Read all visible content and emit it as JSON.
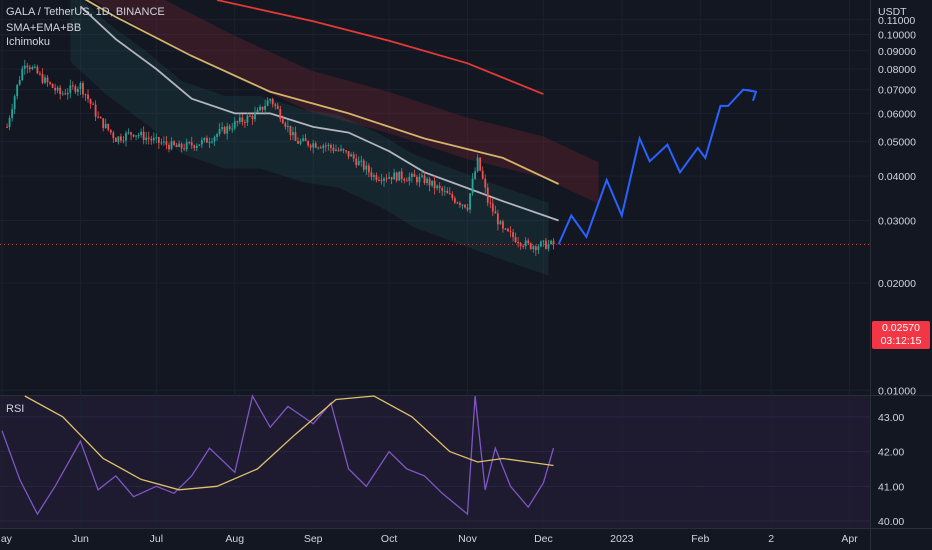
{
  "header": {
    "symbol": "GALA / TetherUS, 1D, BINANCE",
    "indicator1": "SMA+EMA+BB",
    "indicator2": "Ichimoku"
  },
  "price_panel": {
    "currency": "USDT",
    "current_price": "0.02570",
    "countdown": "03:12:15",
    "price_color": "#f23645",
    "projection_color": "#2962ff"
  },
  "rsi_panel": {
    "label": "RSI"
  },
  "chart_data": [
    {
      "type": "line",
      "title": "GALA / TetherUS, 1D, BINANCE",
      "xlabel": "",
      "ylabel": "",
      "y_axis_label": "USDT",
      "y_scale": "log",
      "ylim": [
        0.0097,
        0.125
      ],
      "x_ticks": [
        "May",
        "Jun",
        "Jul",
        "Aug",
        "Sep",
        "Oct",
        "Nov",
        "Dec",
        "2023",
        "Feb",
        "2",
        "Apr"
      ],
      "x_tick_dates": [
        "2022-05-01",
        "2022-06-01",
        "2022-07-01",
        "2022-08-01",
        "2022-09-01",
        "2022-10-01",
        "2022-11-01",
        "2022-12-01",
        "2023-01-01",
        "2023-02-01",
        "2023-03-01",
        "2023-04-01"
      ],
      "y_ticks": [
        "0.11000",
        "0.10000",
        "0.09000",
        "0.08000",
        "0.07000",
        "0.06000",
        "0.05000",
        "0.04000",
        "0.03000",
        "0.02000",
        "0.01000"
      ],
      "y_tick_values": [
        0.11,
        0.1,
        0.09,
        0.08,
        0.07,
        0.06,
        0.05,
        0.04,
        0.03,
        0.02,
        0.01
      ],
      "grid": true,
      "series": [
        {
          "role": "price",
          "color": "#d1d4dc",
          "x": [
            "2022-05-03",
            "2022-05-10",
            "2022-05-17",
            "2022-05-24",
            "2022-06-01",
            "2022-06-08",
            "2022-06-15",
            "2022-06-22",
            "2022-07-01",
            "2022-07-10",
            "2022-07-20",
            "2022-08-01",
            "2022-08-10",
            "2022-08-15",
            "2022-08-25",
            "2022-09-05",
            "2022-09-15",
            "2022-09-25",
            "2022-10-05",
            "2022-10-15",
            "2022-10-25",
            "2022-11-01",
            "2022-11-05",
            "2022-11-09",
            "2022-11-15",
            "2022-11-25",
            "2022-12-05"
          ],
          "y": [
            0.055,
            0.084,
            0.075,
            0.068,
            0.072,
            0.058,
            0.051,
            0.053,
            0.05,
            0.048,
            0.05,
            0.056,
            0.06,
            0.066,
            0.05,
            0.049,
            0.046,
            0.04,
            0.04,
            0.039,
            0.035,
            0.033,
            0.044,
            0.034,
            0.028,
            0.0255,
            0.0257
          ]
        },
        {
          "role": "moving-average-long",
          "color": "#e53935",
          "x": [
            "2022-07-25",
            "2022-09-01",
            "2022-10-01",
            "2022-11-01",
            "2022-12-01"
          ],
          "y": [
            0.125,
            0.109,
            0.096,
            0.083,
            0.068
          ]
        },
        {
          "role": "moving-average-mid",
          "color": "#d4b36a",
          "x": [
            "2022-05-15",
            "2022-06-15",
            "2022-07-15",
            "2022-08-15",
            "2022-09-15",
            "2022-10-15",
            "2022-11-15",
            "2022-12-07"
          ],
          "y": [
            0.15,
            0.112,
            0.087,
            0.069,
            0.06,
            0.051,
            0.045,
            0.038
          ]
        },
        {
          "role": "moving-average-short",
          "color": "#b2b5be",
          "x": [
            "2022-06-01",
            "2022-06-15",
            "2022-07-01",
            "2022-07-15",
            "2022-08-01",
            "2022-08-15",
            "2022-09-01",
            "2022-09-15",
            "2022-10-01",
            "2022-10-15",
            "2022-11-01",
            "2022-11-15",
            "2022-12-07"
          ],
          "y": [
            0.12,
            0.097,
            0.08,
            0.066,
            0.06,
            0.06,
            0.055,
            0.053,
            0.047,
            0.041,
            0.037,
            0.034,
            0.03
          ]
        },
        {
          "role": "projection",
          "color": "#2962ff",
          "x": [
            "2022-12-07",
            "2022-12-12",
            "2022-12-18",
            "2022-12-26",
            "2023-01-01",
            "2023-01-08",
            "2023-01-12",
            "2023-01-19",
            "2023-01-24",
            "2023-01-31",
            "2023-02-03",
            "2023-02-09",
            "2023-02-12",
            "2023-02-18",
            "2023-02-23"
          ],
          "y": [
            0.0257,
            0.031,
            0.027,
            0.039,
            0.031,
            0.051,
            0.044,
            0.049,
            0.041,
            0.048,
            0.045,
            0.063,
            0.063,
            0.07,
            0.069
          ]
        }
      ]
    },
    {
      "type": "line",
      "title": "RSI",
      "xlabel": "",
      "ylabel": "",
      "ylim": [
        39.8,
        43.6
      ],
      "y_ticks": [
        "43.00",
        "42.00",
        "41.00",
        "40.00"
      ],
      "y_tick_values": [
        43.0,
        42.0,
        41.0,
        40.0
      ],
      "grid": true,
      "series": [
        {
          "role": "rsi",
          "color": "#7e57c2",
          "x": [
            "2022-05-01",
            "2022-05-08",
            "2022-05-15",
            "2022-05-22",
            "2022-06-01",
            "2022-06-08",
            "2022-06-15",
            "2022-06-22",
            "2022-07-01",
            "2022-07-08",
            "2022-07-15",
            "2022-07-22",
            "2022-08-01",
            "2022-08-08",
            "2022-08-15",
            "2022-08-22",
            "2022-09-01",
            "2022-09-08",
            "2022-09-15",
            "2022-09-22",
            "2022-10-01",
            "2022-10-08",
            "2022-10-15",
            "2022-10-22",
            "2022-11-01",
            "2022-11-04",
            "2022-11-08",
            "2022-11-12",
            "2022-11-18",
            "2022-11-25",
            "2022-12-01",
            "2022-12-05"
          ],
          "y": [
            42.6,
            41.2,
            40.2,
            41.0,
            42.3,
            40.9,
            41.3,
            40.7,
            41.0,
            40.8,
            41.3,
            42.1,
            41.4,
            43.6,
            42.7,
            43.3,
            42.8,
            43.4,
            41.5,
            41.0,
            42.0,
            41.5,
            41.3,
            40.8,
            40.2,
            43.6,
            40.9,
            42.1,
            41.0,
            40.4,
            41.1,
            42.1
          ]
        },
        {
          "role": "rsi-average",
          "color": "#e0c06a",
          "x": [
            "2022-05-10",
            "2022-05-25",
            "2022-06-10",
            "2022-06-25",
            "2022-07-10",
            "2022-07-25",
            "2022-08-10",
            "2022-08-25",
            "2022-09-10",
            "2022-09-25",
            "2022-10-10",
            "2022-10-25",
            "2022-11-05",
            "2022-11-15",
            "2022-11-25",
            "2022-12-05"
          ],
          "y": [
            43.7,
            43.0,
            41.8,
            41.2,
            40.9,
            41.0,
            41.5,
            42.5,
            43.5,
            43.6,
            43.0,
            42.0,
            41.7,
            41.8,
            41.7,
            41.6
          ]
        }
      ]
    }
  ]
}
